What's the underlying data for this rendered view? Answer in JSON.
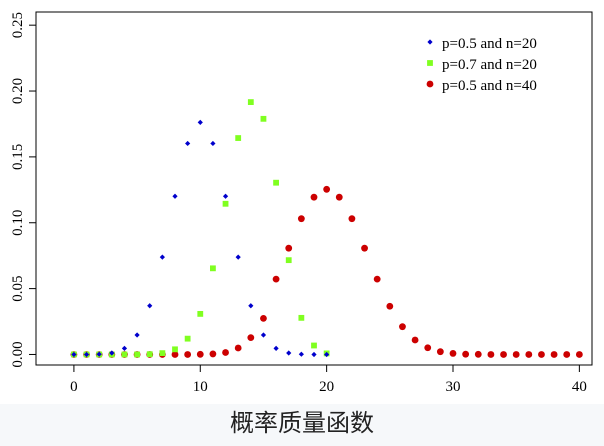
{
  "chart_data": {
    "type": "scatter",
    "xlim": [
      -3,
      41
    ],
    "ylim": [
      -0.008,
      0.26
    ],
    "x_ticks": [
      0,
      10,
      20,
      30,
      40
    ],
    "y_ticks": [
      0.0,
      0.05,
      0.1,
      0.15,
      0.2,
      0.25
    ],
    "y_tick_labels": [
      "0.00",
      "0.05",
      "0.10",
      "0.15",
      "0.20",
      "0.25"
    ],
    "grid": false,
    "legend_position": "top-right",
    "series": [
      {
        "name": "p=0.5 and n=20",
        "color": "#0000cc",
        "marker": "diamond",
        "x": [
          0,
          1,
          2,
          3,
          4,
          5,
          6,
          7,
          8,
          9,
          10,
          11,
          12,
          13,
          14,
          15,
          16,
          17,
          18,
          19,
          20
        ],
        "values": [
          0.0,
          0.0,
          0.0002,
          0.0011,
          0.0046,
          0.0148,
          0.037,
          0.0739,
          0.1201,
          0.1602,
          0.1762,
          0.1602,
          0.1201,
          0.0739,
          0.037,
          0.0148,
          0.0046,
          0.0011,
          0.0002,
          0.0,
          0.0
        ]
      },
      {
        "name": "p=0.7 and n=20",
        "color": "#80ff20",
        "marker": "square",
        "x": [
          0,
          1,
          2,
          3,
          4,
          5,
          6,
          7,
          8,
          9,
          10,
          11,
          12,
          13,
          14,
          15,
          16,
          17,
          18,
          19,
          20
        ],
        "values": [
          0.0,
          0.0,
          0.0,
          0.0,
          0.0,
          0.0,
          0.0002,
          0.001,
          0.0039,
          0.012,
          0.0308,
          0.0654,
          0.1144,
          0.1643,
          0.1916,
          0.1789,
          0.1304,
          0.0716,
          0.0278,
          0.0068,
          0.0008
        ]
      },
      {
        "name": "p=0.5 and n=40",
        "color": "#cc0000",
        "marker": "circle",
        "x": [
          0,
          1,
          2,
          3,
          4,
          5,
          6,
          7,
          8,
          9,
          10,
          11,
          12,
          13,
          14,
          15,
          16,
          17,
          18,
          19,
          20,
          21,
          22,
          23,
          24,
          25,
          26,
          27,
          28,
          29,
          30,
          31,
          32,
          33,
          34,
          35,
          36,
          37,
          38,
          39,
          40
        ],
        "values": [
          0,
          0,
          0,
          0,
          0,
          0,
          0,
          0,
          0,
          0,
          0.0001,
          0.0004,
          0.0015,
          0.0049,
          0.0128,
          0.0274,
          0.0572,
          0.0807,
          0.1031,
          0.1194,
          0.1254,
          0.1194,
          0.1031,
          0.0807,
          0.0572,
          0.0366,
          0.0211,
          0.011,
          0.0051,
          0.0021,
          0.0008,
          0.0002,
          0.0001,
          0,
          0,
          0,
          0,
          0,
          0,
          0,
          0
        ]
      }
    ]
  },
  "caption": "概率质量函数"
}
